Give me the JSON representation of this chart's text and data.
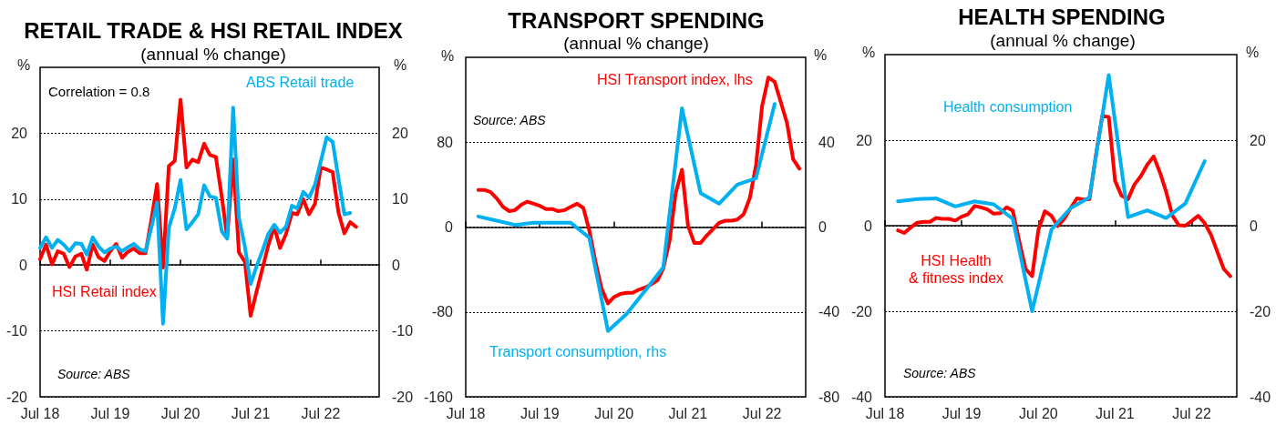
{
  "chart_data": [
    {
      "type": "line",
      "title": "RETAIL TRADE & HSI RETAIL INDEX",
      "subtitle": "(annual % change)",
      "ylabel": "%",
      "y2label": "%",
      "annotations": [
        "Correlation = 0.8",
        "Source: ABS"
      ],
      "series": [
        {
          "name": "HSI Retail index",
          "color": "#ff0000",
          "x": [
            "2018-07",
            "2018-08",
            "2018-09",
            "2018-10",
            "2018-11",
            "2018-12",
            "2019-01",
            "2019-02",
            "2019-03",
            "2019-04",
            "2019-05",
            "2019-06",
            "2019-07",
            "2019-08",
            "2019-09",
            "2019-10",
            "2019-11",
            "2019-12",
            "2020-01",
            "2020-02",
            "2020-03",
            "2020-04",
            "2020-05",
            "2020-06",
            "2020-07",
            "2020-08",
            "2020-09",
            "2020-10",
            "2020-11",
            "2020-12",
            "2021-01",
            "2021-02",
            "2021-03",
            "2021-04",
            "2021-05",
            "2021-06",
            "2021-07",
            "2021-08",
            "2021-09",
            "2021-10",
            "2021-11",
            "2021-12",
            "2022-01",
            "2022-02",
            "2022-03",
            "2022-04",
            "2022-05",
            "2022-06",
            "2022-07",
            "2022-08",
            "2022-09",
            "2022-10",
            "2022-11",
            "2022-12",
            "2023-01"
          ],
          "values": [
            0.9,
            3.1,
            0.1,
            2.1,
            1.7,
            -0.3,
            1.3,
            1.7,
            -0.7,
            3.1,
            1.2,
            0.6,
            2.1,
            3.2,
            1.1,
            2.0,
            2.5,
            1.8,
            1.8,
            7.0,
            12.3,
            -0.4,
            15.0,
            15.8,
            25.1,
            14.8,
            16.0,
            15.6,
            18.4,
            16.7,
            16.4,
            10.3,
            4.2,
            16.0,
            1.9,
            0.5,
            -7.7,
            -4.0,
            -0.5,
            3.0,
            5.8,
            2.6,
            4.7,
            7.9,
            7.7,
            10.0,
            7.7,
            9.3,
            14.8,
            14.5,
            14.1,
            8.0,
            4.8,
            6.5,
            5.8
          ]
        },
        {
          "name": "ABS Retail trade",
          "color": "#00b0f0",
          "x": [
            "2018-07",
            "2018-08",
            "2018-09",
            "2018-10",
            "2018-11",
            "2018-12",
            "2019-01",
            "2019-02",
            "2019-03",
            "2019-04",
            "2019-05",
            "2019-06",
            "2019-07",
            "2019-08",
            "2019-09",
            "2019-10",
            "2019-11",
            "2019-12",
            "2020-01",
            "2020-02",
            "2020-03",
            "2020-04",
            "2020-05",
            "2020-06",
            "2020-07",
            "2020-08",
            "2020-09",
            "2020-10",
            "2020-11",
            "2020-12",
            "2021-01",
            "2021-02",
            "2021-03",
            "2021-04",
            "2021-05",
            "2021-06",
            "2021-07",
            "2021-08",
            "2021-09",
            "2021-10",
            "2021-11",
            "2021-12",
            "2022-01",
            "2022-02",
            "2022-03",
            "2022-04",
            "2022-05",
            "2022-06",
            "2022-07",
            "2022-08",
            "2022-09",
            "2022-10",
            "2022-11",
            "2022-12"
          ],
          "values": [
            2.6,
            4.2,
            2.6,
            3.8,
            3.1,
            2.1,
            3.3,
            3.2,
            1.6,
            4.2,
            2.8,
            1.9,
            2.5,
            2.8,
            2.1,
            2.7,
            3.2,
            2.4,
            2.1,
            5.8,
            9.5,
            -8.9,
            5.6,
            8.6,
            12.9,
            5.4,
            6.5,
            7.7,
            12.1,
            10.4,
            10.2,
            5.1,
            4.0,
            23.9,
            7.2,
            2.8,
            -2.9,
            -0.2,
            2.2,
            4.7,
            6.1,
            4.9,
            5.8,
            9.0,
            8.6,
            11.1,
            10.2,
            12.2,
            15.7,
            19.4,
            18.7,
            13.2,
            7.7,
            7.9
          ]
        }
      ],
      "xlim": [
        "2018-07",
        "2023-05"
      ],
      "xticks": [
        {
          "value": "2018-07",
          "label": "Jul 18"
        },
        {
          "value": "2019-07",
          "label": "Jul 19"
        },
        {
          "value": "2020-07",
          "label": "Jul 20"
        },
        {
          "value": "2021-07",
          "label": "Jul 21"
        },
        {
          "value": "2022-07",
          "label": "Jul 22"
        }
      ],
      "ylim": [
        -20,
        30
      ],
      "yticks": [
        -20,
        -10,
        0,
        10,
        20
      ],
      "y2lim": [
        -20,
        30
      ],
      "y2ticks": [
        -20,
        -10,
        0,
        10,
        20
      ],
      "grid": "y",
      "marker": "none",
      "line_style": "solid"
    },
    {
      "type": "line",
      "title": "TRANSPORT SPENDING",
      "subtitle": "(annual % change)",
      "ylabel": "%",
      "y2label": "%",
      "annotations": [
        "Source: ABS"
      ],
      "series": [
        {
          "name": "HSI Transport index, lhs",
          "color": "#ff0000",
          "x": [
            "2018-09",
            "2018-10",
            "2018-11",
            "2018-12",
            "2019-01",
            "2019-02",
            "2019-03",
            "2019-04",
            "2019-05",
            "2019-06",
            "2019-07",
            "2019-08",
            "2019-09",
            "2019-10",
            "2019-11",
            "2019-12",
            "2020-01",
            "2020-02",
            "2020-03",
            "2020-04",
            "2020-05",
            "2020-06",
            "2020-07",
            "2020-08",
            "2020-09",
            "2020-10",
            "2020-11",
            "2020-12",
            "2021-01",
            "2021-02",
            "2021-03",
            "2021-04",
            "2021-05",
            "2021-06",
            "2021-07",
            "2021-08",
            "2021-09",
            "2021-10",
            "2021-11",
            "2021-12",
            "2022-01",
            "2022-02",
            "2022-03",
            "2022-04",
            "2022-05",
            "2022-06",
            "2022-07",
            "2022-08",
            "2022-09",
            "2022-10",
            "2022-11",
            "2022-12",
            "2023-01"
          ],
          "values": [
            35,
            35,
            33,
            27,
            19,
            15,
            16,
            21,
            24,
            22,
            20,
            17,
            17,
            15,
            16,
            19,
            22,
            18,
            -3,
            -33,
            -58,
            -72,
            -66,
            -63,
            -62,
            -62,
            -59,
            -57,
            -54,
            -50,
            -39,
            -13,
            32,
            54,
            1,
            -15,
            -15,
            -8,
            -2,
            4,
            6,
            6,
            7,
            12,
            27,
            58,
            114,
            141,
            137,
            118,
            98,
            64,
            55
          ]
        },
        {
          "name": "Transport consumption, rhs",
          "color": "#00b0f0",
          "axis": "y2",
          "x": [
            "2018-09",
            "2018-12",
            "2019-03",
            "2019-06",
            "2019-09",
            "2019-12",
            "2020-03",
            "2020-06",
            "2020-09",
            "2020-12",
            "2021-03",
            "2021-06",
            "2021-09",
            "2021-12",
            "2022-03",
            "2022-06",
            "2022-09"
          ],
          "values": [
            5,
            3,
            1,
            2,
            2,
            2,
            -5,
            -49,
            -41,
            -30,
            -19,
            56,
            16,
            11,
            20,
            23,
            58
          ]
        }
      ],
      "xlim": [
        "2018-07",
        "2023-02"
      ],
      "xticks": [
        {
          "value": "2018-07",
          "label": "Jul 18"
        },
        {
          "value": "2019-07",
          "label": "Jul 19"
        },
        {
          "value": "2020-07",
          "label": "Jul 20"
        },
        {
          "value": "2021-07",
          "label": "Jul 21"
        },
        {
          "value": "2022-07",
          "label": "Jul 22"
        }
      ],
      "ylim": [
        -160,
        160
      ],
      "yticks": [
        -160,
        -80,
        0,
        80
      ],
      "y2lim": [
        -80,
        80
      ],
      "y2ticks": [
        -80,
        -40,
        0,
        40
      ],
      "grid": "y",
      "marker": "none",
      "line_style": "solid"
    },
    {
      "type": "line",
      "title": "HEALTH SPENDING",
      "subtitle": "(annual % change)",
      "ylabel": "%",
      "y2label": "%",
      "annotations": [
        "Source: ABS"
      ],
      "series": [
        {
          "name": "HSI Health\n& fitness index",
          "color": "#ff0000",
          "x": [
            "2018-09",
            "2018-10",
            "2018-11",
            "2018-12",
            "2019-01",
            "2019-02",
            "2019-03",
            "2019-04",
            "2019-05",
            "2019-06",
            "2019-07",
            "2019-08",
            "2019-09",
            "2019-10",
            "2019-11",
            "2019-12",
            "2020-01",
            "2020-02",
            "2020-03",
            "2020-04",
            "2020-05",
            "2020-06",
            "2020-07",
            "2020-08",
            "2020-09",
            "2020-10",
            "2020-11",
            "2020-12",
            "2021-01",
            "2021-02",
            "2021-03",
            "2021-04",
            "2021-05",
            "2021-06",
            "2021-07",
            "2021-08",
            "2021-09",
            "2021-10",
            "2021-11",
            "2021-12",
            "2022-01",
            "2022-02",
            "2022-03",
            "2022-04",
            "2022-05",
            "2022-06",
            "2022-07",
            "2022-08",
            "2022-09",
            "2022-10",
            "2022-11",
            "2022-12",
            "2023-01"
          ],
          "values": [
            -1.1,
            -1.7,
            -0.4,
            0.7,
            0.9,
            0.9,
            1.8,
            1.6,
            1.6,
            1.2,
            2.1,
            2.7,
            4.6,
            4.3,
            3.8,
            2.8,
            2.9,
            4.3,
            3.5,
            -3.7,
            -10.1,
            -11.8,
            -0.9,
            3.4,
            2.3,
            -0.1,
            1.6,
            4.1,
            6.4,
            6.1,
            6.2,
            16.5,
            25.7,
            25.4,
            10.5,
            7.0,
            6.2,
            9.6,
            11.6,
            14.2,
            16.2,
            12.3,
            8.0,
            2.3,
            0.1,
            0.0,
            1.1,
            2.3,
            0.6,
            -2.1,
            -6.2,
            -10.1,
            -11.8
          ]
        },
        {
          "name": "Health consumption",
          "color": "#00b0f0",
          "x": [
            "2018-09",
            "2018-12",
            "2019-03",
            "2019-06",
            "2019-09",
            "2019-12",
            "2020-03",
            "2020-06",
            "2020-09",
            "2020-12",
            "2021-03",
            "2021-06",
            "2021-09",
            "2021-12",
            "2022-03",
            "2022-06",
            "2022-09"
          ],
          "values": [
            5.7,
            6.2,
            6.4,
            4.5,
            5.7,
            5.0,
            1.6,
            -20.0,
            -0.9,
            4.1,
            6.6,
            35.2,
            2.0,
            3.6,
            1.8,
            5.2,
            15.1
          ]
        }
      ],
      "xlim": [
        "2018-07",
        "2023-02"
      ],
      "xticks": [
        {
          "value": "2018-07",
          "label": "Jul 18"
        },
        {
          "value": "2019-07",
          "label": "Jul 19"
        },
        {
          "value": "2020-07",
          "label": "Jul 20"
        },
        {
          "value": "2021-07",
          "label": "Jul 21"
        },
        {
          "value": "2022-07",
          "label": "Jul 22"
        }
      ],
      "ylim": [
        -40,
        40
      ],
      "yticks": [
        -40,
        -20,
        0,
        20
      ],
      "y2lim": [
        -40,
        40
      ],
      "y2ticks": [
        -40,
        -20,
        0,
        20
      ],
      "grid": "y",
      "marker": "none",
      "line_style": "solid"
    }
  ]
}
